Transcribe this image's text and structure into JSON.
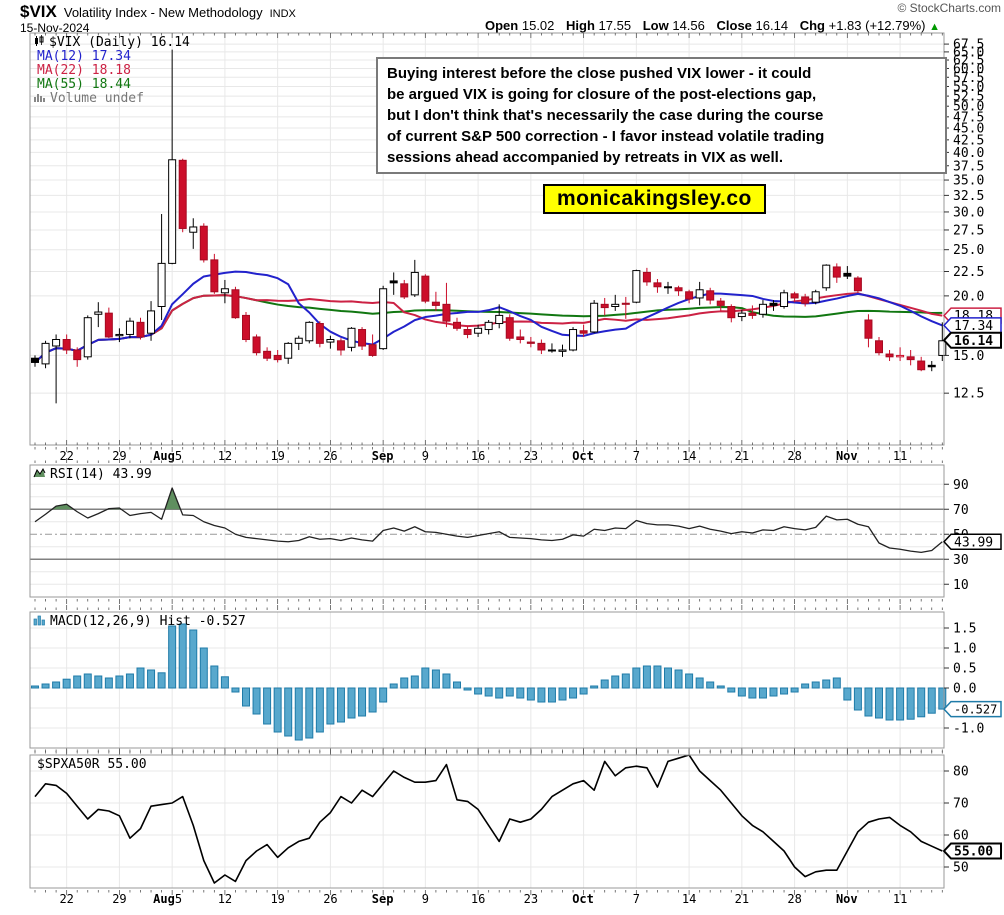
{
  "header": {
    "symbol": "$VIX",
    "description": "Volatility Index - New Methodology",
    "exchange": "INDX",
    "date": "15-Nov-2024",
    "copyright": "© StockCharts.com",
    "quote": {
      "open_label": "Open",
      "open": "15.02",
      "high_label": "High",
      "high": "17.55",
      "low_label": "Low",
      "low": "14.56",
      "close_label": "Close",
      "close": "16.14",
      "chg_label": "Chg",
      "chg": "+1.83 (+12.79%)",
      "direction": "▲"
    }
  },
  "annotation": {
    "lines": [
      "Buying interest before the close pushed VIX lower - it could",
      "be argued VIX is going for closure of the post-elections gap,",
      "but I don't think that's necessarily the case during the course",
      "of current S&P 500 correction - I favor instead volatile trading",
      "sessions ahead accompanied by retreats in VIX as well."
    ]
  },
  "watermark": "monicakingsley.co",
  "colors": {
    "candle_up_fill": "#ffffff",
    "candle_up_stroke": "#000000",
    "candle_down": "#cc0e2a",
    "candle_down_stroke": "#a50b22",
    "candle_black": "#000000",
    "ma12": "#2222cc",
    "ma22": "#cc2244",
    "ma55": "#117711",
    "rsi_line": "#222222",
    "rsi_fill": "#5f8f5f",
    "macd_bar": "#58a8cd",
    "macd_bar_border": "#1f7ba8",
    "spx_line": "#000000",
    "grid": "#e8e8e8",
    "grid_dark": "#808080",
    "panel_border": "#999999",
    "tick": "#555555",
    "volume_legend": "#777777",
    "arrow_up": "#009900",
    "watermark_bg": "#ffff00"
  },
  "chart_data": {
    "type": "candlestick-multi-panel",
    "x_axis": {
      "ticks": [
        {
          "i": 3,
          "m": "",
          "d": "22"
        },
        {
          "i": 8,
          "m": "",
          "d": "29"
        },
        {
          "i": 13,
          "m": "Aug",
          "d": "5"
        },
        {
          "i": 18,
          "m": "",
          "d": "12"
        },
        {
          "i": 23,
          "m": "",
          "d": "19"
        },
        {
          "i": 28,
          "m": "",
          "d": "26"
        },
        {
          "i": 33,
          "m": "Sep",
          "d": ""
        },
        {
          "i": 37,
          "m": "",
          "d": "9"
        },
        {
          "i": 42,
          "m": "",
          "d": "16"
        },
        {
          "i": 47,
          "m": "",
          "d": "23"
        },
        {
          "i": 52,
          "m": "Oct",
          "d": ""
        },
        {
          "i": 57,
          "m": "",
          "d": "7"
        },
        {
          "i": 62,
          "m": "",
          "d": "14"
        },
        {
          "i": 67,
          "m": "",
          "d": "21"
        },
        {
          "i": 72,
          "m": "",
          "d": "28"
        },
        {
          "i": 77,
          "m": "Nov",
          "d": ""
        },
        {
          "i": 82,
          "m": "",
          "d": "11"
        }
      ]
    },
    "main": {
      "scale": "log",
      "legend": [
        {
          "swatch": "candles",
          "label": "$VIX (Daily) 16.14",
          "color": "#000000"
        },
        {
          "swatch": "ma12",
          "label": "MA(12) 17.34",
          "color": "#2222cc"
        },
        {
          "swatch": "ma22",
          "label": "MA(22) 18.18",
          "color": "#cc2244"
        },
        {
          "swatch": "ma55",
          "label": "MA(55) 18.44",
          "color": "#117711"
        },
        {
          "swatch": "volume",
          "label": "Volume undef",
          "color": "#777777"
        }
      ],
      "y_labels": [
        67.5,
        65.0,
        62.5,
        60.0,
        57.5,
        55.0,
        52.5,
        50.0,
        47.5,
        45.0,
        42.5,
        40.0,
        37.5,
        35.0,
        32.5,
        30.0,
        27.5,
        25.0,
        22.5,
        20.0,
        15.0,
        12.5
      ],
      "ma_periods": [
        12,
        22,
        55
      ],
      "ma_last": {
        "ma12": 17.34,
        "ma22": 18.18,
        "ma55": 18.44
      },
      "ohlc_order": "open,high,low,close,type",
      "candles": [
        [
          14.8,
          15.0,
          14.2,
          14.5,
          "b"
        ],
        [
          14.4,
          16.1,
          14.1,
          15.9,
          "w"
        ],
        [
          15.7,
          16.6,
          11.9,
          16.2,
          "w"
        ],
        [
          16.2,
          16.6,
          15.1,
          15.4,
          "r"
        ],
        [
          15.4,
          15.6,
          14.2,
          14.7,
          "r"
        ],
        [
          14.9,
          18.2,
          14.7,
          18.0,
          "w"
        ],
        [
          18.3,
          19.4,
          17.2,
          18.5,
          "w"
        ],
        [
          18.4,
          18.9,
          16.3,
          16.4,
          "r"
        ],
        [
          16.5,
          17.1,
          16.0,
          16.6,
          "w"
        ],
        [
          16.6,
          18.0,
          16.3,
          17.7,
          "w"
        ],
        [
          17.6,
          18.0,
          16.2,
          16.4,
          "r"
        ],
        [
          16.7,
          19.5,
          16.1,
          18.6,
          "w"
        ],
        [
          19.0,
          29.7,
          17.8,
          23.4,
          "w"
        ],
        [
          23.4,
          65.7,
          23.3,
          38.6,
          "w"
        ],
        [
          38.5,
          38.8,
          27.2,
          27.7,
          "r"
        ],
        [
          27.2,
          29.1,
          25.1,
          27.9,
          "w"
        ],
        [
          28.0,
          28.4,
          23.5,
          23.8,
          "r"
        ],
        [
          23.8,
          24.5,
          20.2,
          20.4,
          "r"
        ],
        [
          20.3,
          21.6,
          19.3,
          20.7,
          "w"
        ],
        [
          20.6,
          20.9,
          17.9,
          18.0,
          "r"
        ],
        [
          18.2,
          18.5,
          16.0,
          16.2,
          "r"
        ],
        [
          16.4,
          16.6,
          15.0,
          15.2,
          "r"
        ],
        [
          15.3,
          15.6,
          14.6,
          14.8,
          "r"
        ],
        [
          15.0,
          15.4,
          14.5,
          14.7,
          "r"
        ],
        [
          14.8,
          16.0,
          14.4,
          15.9,
          "w"
        ],
        [
          15.9,
          16.5,
          15.4,
          16.3,
          "w"
        ],
        [
          16.1,
          17.7,
          15.9,
          17.6,
          "w"
        ],
        [
          17.5,
          17.7,
          15.6,
          15.9,
          "r"
        ],
        [
          16.0,
          16.5,
          15.5,
          16.2,
          "w"
        ],
        [
          16.1,
          16.3,
          15.0,
          15.4,
          "r"
        ],
        [
          15.6,
          17.2,
          15.3,
          17.1,
          "w"
        ],
        [
          17.0,
          17.2,
          15.4,
          15.7,
          "r"
        ],
        [
          15.8,
          16.6,
          14.9,
          15.0,
          "r"
        ],
        [
          15.5,
          21.0,
          15.4,
          20.7,
          "w"
        ],
        [
          21.5,
          22.4,
          20.1,
          21.3,
          "b"
        ],
        [
          21.2,
          21.6,
          19.7,
          19.9,
          "r"
        ],
        [
          20.1,
          23.8,
          19.9,
          22.4,
          "w"
        ],
        [
          22.0,
          22.2,
          19.3,
          19.5,
          "r"
        ],
        [
          19.4,
          20.4,
          18.6,
          19.1,
          "r"
        ],
        [
          19.2,
          21.3,
          17.2,
          17.7,
          "r"
        ],
        [
          17.6,
          18.0,
          16.9,
          17.1,
          "r"
        ],
        [
          17.0,
          17.3,
          16.3,
          16.6,
          "r"
        ],
        [
          16.7,
          17.4,
          16.4,
          17.1,
          "w"
        ],
        [
          17.0,
          17.8,
          16.6,
          17.6,
          "w"
        ],
        [
          17.5,
          19.2,
          17.1,
          18.2,
          "w"
        ],
        [
          18.0,
          18.3,
          16.1,
          16.3,
          "r"
        ],
        [
          16.4,
          17.0,
          15.9,
          16.2,
          "r"
        ],
        [
          16.0,
          16.4,
          15.6,
          15.9,
          "r"
        ],
        [
          15.9,
          16.2,
          15.1,
          15.4,
          "r"
        ],
        [
          15.4,
          15.9,
          15.2,
          15.4,
          "b"
        ],
        [
          15.3,
          15.8,
          14.9,
          15.4,
          "w"
        ],
        [
          15.4,
          17.2,
          15.3,
          17.0,
          "w"
        ],
        [
          16.9,
          17.4,
          16.4,
          16.7,
          "r"
        ],
        [
          16.8,
          19.6,
          16.7,
          19.3,
          "w"
        ],
        [
          19.2,
          19.8,
          18.2,
          18.9,
          "r"
        ],
        [
          19.0,
          20.1,
          18.6,
          19.2,
          "w"
        ],
        [
          19.3,
          19.9,
          17.9,
          19.2,
          "r"
        ],
        [
          19.4,
          22.7,
          19.3,
          22.6,
          "w"
        ],
        [
          22.4,
          22.9,
          21.0,
          21.4,
          "r"
        ],
        [
          21.3,
          21.7,
          20.3,
          20.9,
          "r"
        ],
        [
          20.8,
          21.4,
          20.2,
          20.9,
          "w"
        ],
        [
          20.8,
          21.0,
          20.0,
          20.5,
          "r"
        ],
        [
          20.4,
          20.6,
          19.3,
          19.7,
          "r"
        ],
        [
          19.8,
          21.4,
          19.1,
          20.6,
          "w"
        ],
        [
          20.5,
          20.8,
          19.2,
          19.6,
          "r"
        ],
        [
          19.5,
          19.8,
          18.6,
          19.1,
          "r"
        ],
        [
          19.0,
          19.2,
          17.6,
          18.0,
          "r"
        ],
        [
          18.1,
          18.7,
          17.7,
          18.4,
          "w"
        ],
        [
          18.4,
          19.1,
          17.9,
          18.2,
          "r"
        ],
        [
          18.3,
          19.6,
          18.0,
          19.2,
          "w"
        ],
        [
          19.3,
          19.6,
          18.6,
          19.1,
          "b"
        ],
        [
          19.0,
          20.6,
          18.8,
          20.3,
          "w"
        ],
        [
          20.2,
          20.4,
          19.4,
          19.8,
          "r"
        ],
        [
          19.9,
          20.2,
          19.0,
          19.3,
          "r"
        ],
        [
          19.4,
          20.6,
          19.2,
          20.4,
          "w"
        ],
        [
          20.8,
          23.3,
          20.5,
          23.2,
          "w"
        ],
        [
          23.0,
          23.4,
          21.3,
          21.9,
          "r"
        ],
        [
          22.3,
          23.1,
          21.7,
          22.0,
          "b"
        ],
        [
          21.8,
          22.0,
          20.3,
          20.5,
          "r"
        ],
        [
          17.8,
          18.3,
          15.6,
          16.3,
          "r"
        ],
        [
          16.1,
          16.4,
          15.0,
          15.2,
          "r"
        ],
        [
          15.1,
          15.4,
          14.6,
          14.9,
          "r"
        ],
        [
          14.9,
          15.6,
          14.6,
          15.0,
          "rw"
        ],
        [
          14.9,
          15.4,
          14.3,
          14.7,
          "r"
        ],
        [
          14.6,
          14.9,
          13.9,
          14.0,
          "r"
        ],
        [
          14.2,
          14.6,
          13.9,
          14.3,
          "b"
        ],
        [
          15.0,
          17.6,
          14.6,
          16.1,
          "w"
        ]
      ],
      "tags": [
        {
          "text": "18.18",
          "value": 18.18,
          "color": "#cc2244",
          "bold": false
        },
        {
          "text": "17.34",
          "value": 17.34,
          "color": "#2222cc",
          "bold": false
        },
        {
          "text": "16.14",
          "value": 16.14,
          "color": "#000000",
          "bold": true
        }
      ]
    },
    "rsi": {
      "label": "RSI(14) 43.99",
      "y_labels": [
        90,
        70,
        50,
        30,
        10
      ],
      "overbought": 70,
      "oversold": 30,
      "mid": 50,
      "values": [
        60,
        66,
        72.5,
        74,
        68,
        63,
        66.5,
        70.5,
        71,
        65,
        66.5,
        67.5,
        62,
        87,
        65.5,
        65,
        60,
        57,
        55,
        50,
        47.5,
        46.5,
        45.5,
        44.5,
        44,
        45,
        48,
        46,
        46.5,
        45,
        47,
        45.5,
        44.5,
        53,
        55,
        52.5,
        56,
        52,
        51.5,
        50,
        48.5,
        47.5,
        49,
        50.5,
        52,
        47.5,
        47,
        46.5,
        45.5,
        45,
        46,
        49.5,
        48.5,
        54,
        53,
        55,
        54.5,
        61,
        58.5,
        57.5,
        57.5,
        56.5,
        54.5,
        56.5,
        54,
        52.5,
        50.5,
        52,
        51,
        53.5,
        53,
        56,
        54.5,
        53.5,
        55.5,
        64.5,
        61.5,
        62,
        58,
        56,
        43,
        39,
        38,
        36.5,
        35.5,
        37,
        44
      ],
      "tag": {
        "text": "43.99",
        "value": 43.99,
        "color": "#000000",
        "bold": false
      }
    },
    "macd": {
      "label": "MACD(12,26,9) Hist -0.527",
      "y_labels": [
        1.5,
        1.0,
        0.5,
        0.0,
        -0.5,
        -1.0
      ],
      "values": [
        0.05,
        0.1,
        0.15,
        0.22,
        0.3,
        0.35,
        0.3,
        0.25,
        0.3,
        0.35,
        0.5,
        0.45,
        0.38,
        1.55,
        1.6,
        1.45,
        1.0,
        0.55,
        0.28,
        -0.1,
        -0.45,
        -0.65,
        -0.9,
        -1.1,
        -1.2,
        -1.3,
        -1.25,
        -1.1,
        -0.9,
        -0.85,
        -0.75,
        -0.7,
        -0.6,
        -0.35,
        0.1,
        0.25,
        0.3,
        0.5,
        0.45,
        0.35,
        0.15,
        -0.05,
        -0.15,
        -0.2,
        -0.25,
        -0.2,
        -0.25,
        -0.3,
        -0.35,
        -0.35,
        -0.3,
        -0.25,
        -0.15,
        0.05,
        0.2,
        0.3,
        0.35,
        0.5,
        0.55,
        0.55,
        0.5,
        0.45,
        0.35,
        0.25,
        0.15,
        0.05,
        -0.1,
        -0.2,
        -0.25,
        -0.25,
        -0.2,
        -0.15,
        -0.1,
        0.1,
        0.15,
        0.2,
        0.25,
        -0.3,
        -0.55,
        -0.7,
        -0.75,
        -0.8,
        -0.8,
        -0.78,
        -0.72,
        -0.63,
        -0.527
      ],
      "tag": {
        "text": "-0.527",
        "value": -0.527,
        "color": "#1f7ba8",
        "bold": false
      }
    },
    "spx": {
      "label": "$SPXA50R 55.00",
      "y_labels": [
        80,
        70,
        60,
        50
      ],
      "values": [
        72,
        76,
        75.5,
        73,
        69,
        65,
        68,
        67.5,
        66,
        59,
        62,
        69,
        69.5,
        70,
        72,
        63,
        52,
        45,
        47.5,
        45.5,
        52,
        55,
        57,
        53,
        56,
        58,
        59,
        64,
        67,
        72,
        70,
        74,
        72,
        76,
        80,
        78,
        76.5,
        76.5,
        77,
        82,
        71,
        70.5,
        68,
        63,
        58,
        65,
        64,
        65,
        68,
        72,
        74,
        76,
        77,
        74,
        83,
        78.5,
        81,
        81.5,
        81,
        75,
        83,
        84,
        85,
        80,
        77,
        74,
        70,
        66,
        63,
        61,
        58,
        55,
        50,
        47,
        48.5,
        49,
        49,
        55,
        61,
        64,
        65,
        65.5,
        63,
        61,
        58,
        56.5,
        55
      ],
      "tag": {
        "text": "55.00",
        "value": 55,
        "color": "#000000",
        "bold": true
      }
    }
  }
}
